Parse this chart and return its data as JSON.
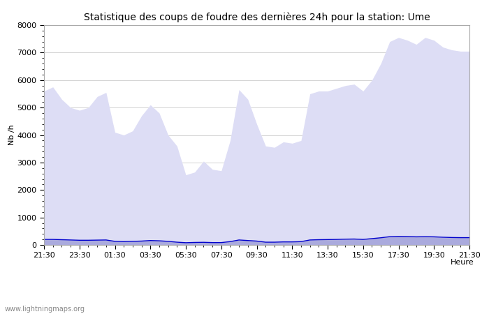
{
  "title": "Statistique des coups de foudre des dernières 24h pour la station: Ume",
  "xlabel": "Heure",
  "ylabel": "Nb /h",
  "watermark": "www.lightningmaps.org",
  "ylim": [
    0,
    8000
  ],
  "yticks": [
    0,
    1000,
    2000,
    3000,
    4000,
    5000,
    6000,
    7000,
    8000
  ],
  "xtick_labels": [
    "21:30",
    "23:30",
    "01:30",
    "03:30",
    "05:30",
    "07:30",
    "09:30",
    "11:30",
    "13:30",
    "15:30",
    "17:30",
    "19:30",
    "21:30"
  ],
  "total_color": "#ddddf5",
  "ume_color": "#aaaadd",
  "moyenne_color": "#0000cc",
  "background_color": "#ffffff",
  "grid_color": "#cccccc",
  "title_fontsize": 10,
  "axis_fontsize": 8,
  "tick_fontsize": 8,
  "total_foudre": [
    5600,
    5750,
    5300,
    5000,
    4900,
    5000,
    5400,
    5550,
    4100,
    4000,
    4150,
    4700,
    5100,
    4800,
    4000,
    3600,
    2550,
    2650,
    3050,
    2750,
    2700,
    3800,
    5650,
    5300,
    4400,
    3600,
    3550,
    3750,
    3700,
    3800,
    5500,
    5600,
    5600,
    5700,
    5800,
    5850,
    5600,
    6000,
    6600,
    7400,
    7550,
    7450,
    7300,
    7550,
    7450,
    7200,
    7100,
    7050,
    7050
  ],
  "ume_foudre": [
    200,
    200,
    190,
    180,
    170,
    170,
    175,
    180,
    130,
    120,
    130,
    140,
    160,
    150,
    130,
    100,
    80,
    90,
    95,
    85,
    85,
    120,
    180,
    160,
    140,
    100,
    100,
    110,
    110,
    120,
    180,
    190,
    195,
    200,
    210,
    215,
    200,
    230,
    260,
    300,
    310,
    305,
    295,
    300,
    295,
    280,
    270,
    265,
    265
  ],
  "moyenne": [
    200,
    200,
    190,
    180,
    170,
    170,
    175,
    180,
    130,
    120,
    130,
    140,
    160,
    150,
    130,
    100,
    80,
    90,
    95,
    85,
    85,
    120,
    180,
    160,
    140,
    100,
    100,
    110,
    110,
    120,
    180,
    190,
    195,
    200,
    210,
    215,
    200,
    230,
    260,
    300,
    310,
    305,
    295,
    300,
    295,
    280,
    270,
    265,
    265
  ]
}
